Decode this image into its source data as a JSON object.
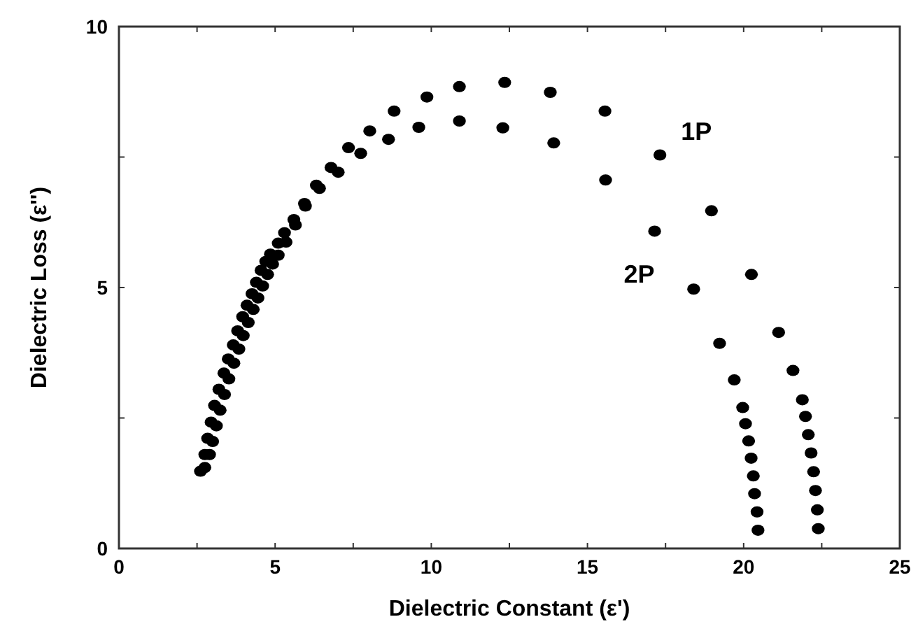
{
  "chart_data": {
    "type": "scatter",
    "xlabel": "Dielectric Constant (ε')",
    "ylabel": "Dielectric Loss (ε'')",
    "xlim": [
      0,
      25
    ],
    "ylim": [
      0,
      10
    ],
    "xticks": [
      0,
      {
        "value": 2.5,
        "label": null
      },
      5,
      {
        "value": 7.5,
        "label": null
      },
      10,
      {
        "value": 12.5,
        "label": null
      },
      15,
      {
        "value": 17.5,
        "label": null
      },
      20,
      {
        "value": 22.5,
        "label": null
      },
      25
    ],
    "yticks": [
      0,
      {
        "value": 2.5,
        "label": null
      },
      5,
      {
        "value": 7.5,
        "label": null
      },
      10
    ],
    "grid": false,
    "marker": "circle",
    "series": [
      {
        "name": "1P",
        "color": "#000000",
        "x": [
          2.61,
          2.75,
          2.84,
          2.95,
          3.06,
          3.2,
          3.36,
          3.5,
          3.66,
          3.8,
          3.96,
          4.1,
          4.26,
          4.4,
          4.55,
          4.7,
          4.85,
          5.1,
          5.3,
          5.6,
          5.94,
          6.32,
          6.79,
          7.35,
          8.03,
          8.81,
          9.86,
          10.9,
          12.35,
          13.81,
          15.56,
          17.32,
          18.97,
          20.25,
          21.12,
          21.58,
          21.88,
          21.98,
          22.07,
          22.16,
          22.24,
          22.3,
          22.36,
          22.39
        ],
        "values": [
          1.48,
          1.8,
          2.11,
          2.42,
          2.74,
          3.05,
          3.36,
          3.63,
          3.9,
          4.17,
          4.44,
          4.66,
          4.88,
          5.1,
          5.33,
          5.5,
          5.64,
          5.85,
          6.05,
          6.3,
          6.61,
          6.96,
          7.3,
          7.68,
          8.0,
          8.38,
          8.65,
          8.85,
          8.93,
          8.74,
          8.38,
          7.54,
          6.47,
          5.25,
          4.14,
          3.41,
          2.85,
          2.53,
          2.18,
          1.83,
          1.47,
          1.11,
          0.74,
          0.38
        ]
      },
      {
        "name": "2P",
        "color": "#000000",
        "x": [
          2.75,
          2.9,
          3.0,
          3.12,
          3.24,
          3.38,
          3.52,
          3.68,
          3.84,
          3.98,
          4.14,
          4.3,
          4.45,
          4.6,
          4.76,
          4.92,
          5.1,
          5.35,
          5.65,
          5.97,
          6.42,
          7.02,
          7.74,
          8.63,
          9.6,
          10.9,
          12.29,
          13.92,
          15.58,
          17.15,
          18.4,
          19.23,
          19.7,
          19.97,
          20.06,
          20.16,
          20.24,
          20.31,
          20.35,
          20.43,
          20.46
        ],
        "values": [
          1.55,
          1.8,
          2.05,
          2.35,
          2.65,
          2.95,
          3.25,
          3.55,
          3.82,
          4.08,
          4.33,
          4.58,
          4.8,
          5.03,
          5.25,
          5.45,
          5.62,
          5.87,
          6.2,
          6.56,
          6.9,
          7.21,
          7.57,
          7.84,
          8.07,
          8.19,
          8.06,
          7.77,
          7.06,
          6.08,
          4.97,
          3.93,
          3.23,
          2.7,
          2.39,
          2.06,
          1.73,
          1.39,
          1.05,
          0.7,
          0.35
        ]
      }
    ]
  }
}
